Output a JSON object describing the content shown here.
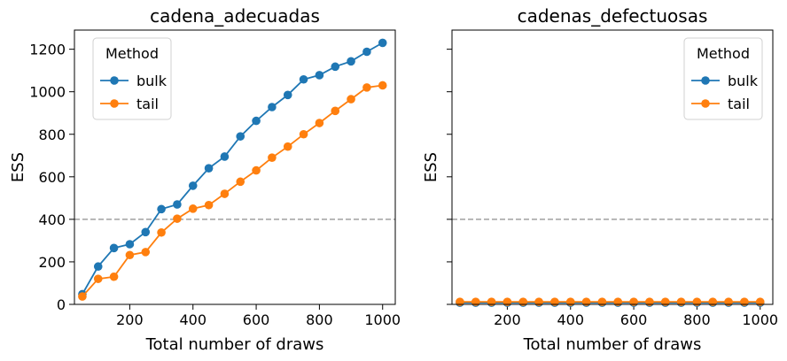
{
  "chart_data": [
    {
      "type": "line",
      "title": "cadena_adecuadas",
      "xlabel": "Total number of draws",
      "ylabel": "ESS",
      "xlim": [
        25,
        1040
      ],
      "ylim": [
        0,
        1290
      ],
      "xticks": [
        200,
        400,
        600,
        800,
        1000
      ],
      "yticks": [
        0,
        200,
        400,
        600,
        800,
        1000,
        1200
      ],
      "show_yticklabels": true,
      "hline": 400,
      "legend": {
        "title": "Method",
        "placement": "upper left"
      },
      "x": [
        50,
        100,
        150,
        200,
        250,
        300,
        350,
        400,
        450,
        500,
        550,
        600,
        650,
        700,
        750,
        800,
        850,
        900,
        950,
        1000
      ],
      "series": [
        {
          "name": "bulk",
          "color": "#1f77b4",
          "values": [
            48,
            178,
            265,
            283,
            340,
            448,
            470,
            558,
            640,
            695,
            790,
            863,
            928,
            985,
            1058,
            1078,
            1118,
            1143,
            1188,
            1230
          ]
        },
        {
          "name": "tail",
          "color": "#ff7f0e",
          "values": [
            37,
            120,
            130,
            232,
            246,
            338,
            403,
            450,
            467,
            520,
            577,
            630,
            690,
            742,
            800,
            853,
            910,
            965,
            1020,
            1030
          ]
        }
      ]
    },
    {
      "type": "line",
      "title": "cadenas_defectuosas",
      "xlabel": "Total number of draws",
      "ylabel": "ESS",
      "xlim": [
        25,
        1040
      ],
      "ylim": [
        0,
        1290
      ],
      "xticks": [
        200,
        400,
        600,
        800,
        1000
      ],
      "yticks": [
        0,
        200,
        400,
        600,
        800,
        1000,
        1200
      ],
      "show_yticklabels": false,
      "hline": 400,
      "legend": {
        "title": "Method",
        "placement": "upper right"
      },
      "x": [
        50,
        100,
        150,
        200,
        250,
        300,
        350,
        400,
        450,
        500,
        550,
        600,
        650,
        700,
        750,
        800,
        850,
        900,
        950,
        1000
      ],
      "series": [
        {
          "name": "bulk",
          "color": "#1f77b4",
          "values": [
            8,
            8,
            8,
            8,
            8,
            8,
            8,
            8,
            8,
            8,
            8,
            8,
            8,
            8,
            8,
            8,
            8,
            8,
            8,
            8
          ]
        },
        {
          "name": "tail",
          "color": "#ff7f0e",
          "values": [
            12,
            12,
            12,
            12,
            12,
            12,
            12,
            12,
            12,
            12,
            12,
            12,
            12,
            12,
            12,
            12,
            12,
            12,
            12,
            12
          ]
        }
      ]
    }
  ]
}
